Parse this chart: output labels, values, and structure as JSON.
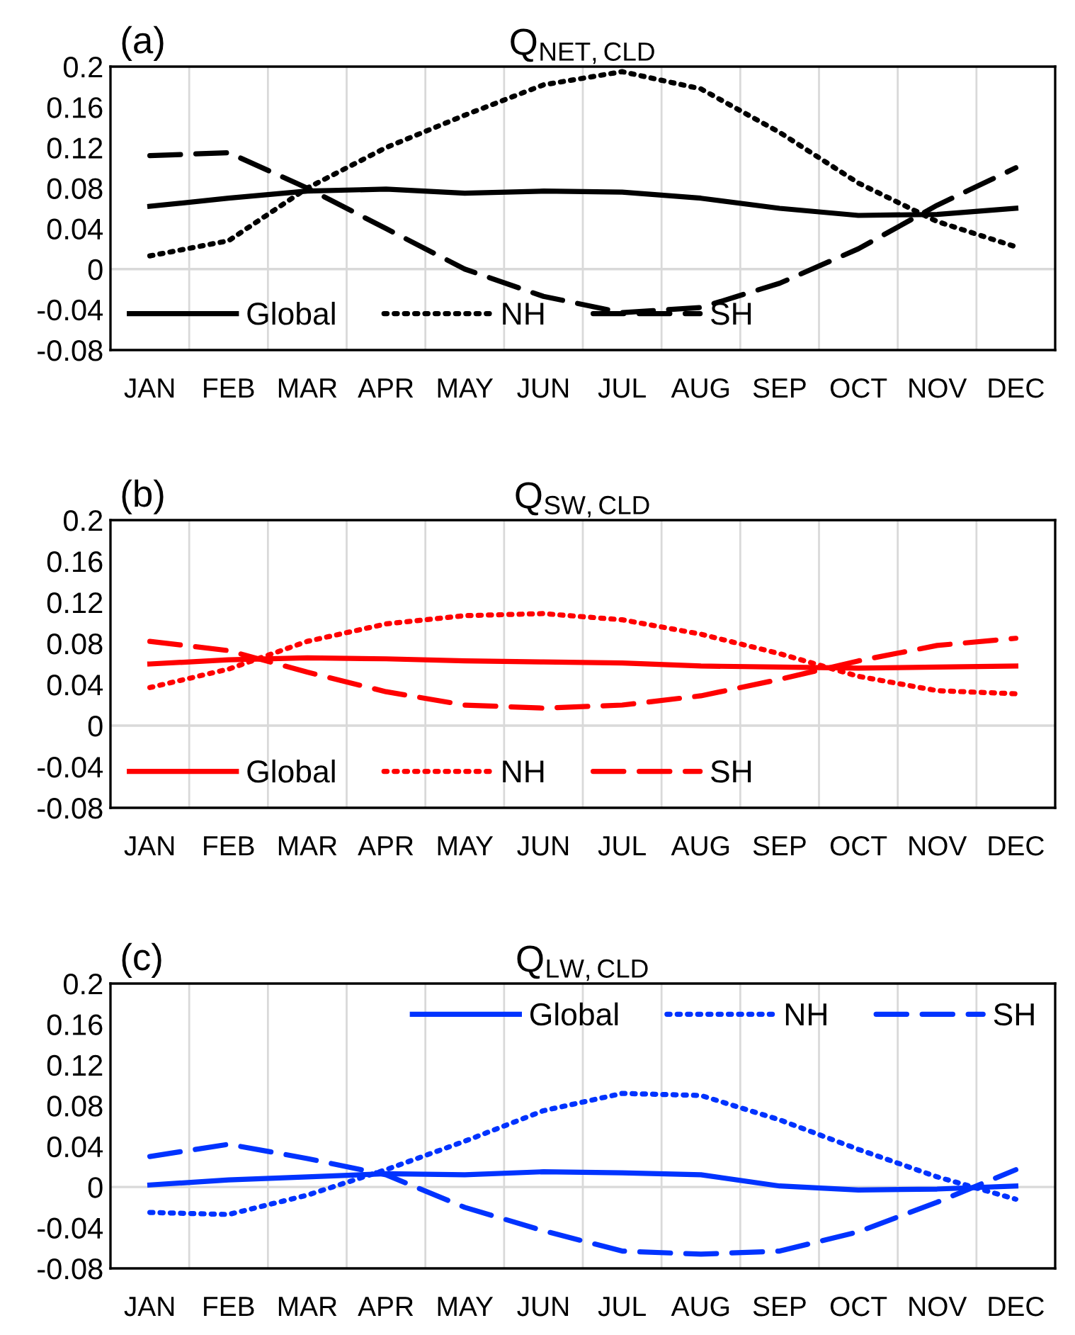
{
  "chart_data": [
    {
      "type": "line",
      "title": "Q$_{NET,CLD}$",
      "annotations": [
        "(a)"
      ],
      "categories": [
        "JAN",
        "FEB",
        "MAR",
        "APR",
        "MAY",
        "JUN",
        "JUL",
        "AUG",
        "SEP",
        "OCT",
        "NOV",
        "DEC"
      ],
      "ylim": [
        -0.08,
        0.2
      ],
      "yticks": [
        -0.08,
        -0.04,
        0,
        0.04,
        0.08,
        0.12,
        0.16,
        0.2
      ],
      "grid": "x",
      "legend": "bottom left",
      "ref_lines": [
        {
          "axis": "y",
          "value": 0,
          "color": "#d9d9d9"
        }
      ],
      "series": [
        {
          "name": "Global",
          "color": "#000000",
          "line_style": "solid",
          "values": [
            0.062,
            0.07,
            0.077,
            0.079,
            0.075,
            0.077,
            0.076,
            0.07,
            0.06,
            0.053,
            0.054,
            0.06
          ]
        },
        {
          "name": "NH",
          "color": "#000000",
          "line_style": "dotted",
          "values": [
            0.013,
            0.028,
            0.08,
            0.12,
            0.152,
            0.182,
            0.195,
            0.178,
            0.135,
            0.085,
            0.047,
            0.022
          ]
        },
        {
          "name": "SH",
          "color": "#000000",
          "line_style": "dashed",
          "values": [
            0.112,
            0.115,
            0.08,
            0.04,
            0.0,
            -0.027,
            -0.043,
            -0.038,
            -0.014,
            0.02,
            0.063,
            0.1
          ]
        }
      ]
    },
    {
      "type": "line",
      "title": "Q$_{SW,CLD}$",
      "annotations": [
        "(b)"
      ],
      "categories": [
        "JAN",
        "FEB",
        "MAR",
        "APR",
        "MAY",
        "JUN",
        "JUL",
        "AUG",
        "SEP",
        "OCT",
        "NOV",
        "DEC"
      ],
      "ylim": [
        -0.08,
        0.2
      ],
      "yticks": [
        -0.08,
        -0.04,
        0,
        0.04,
        0.08,
        0.12,
        0.16,
        0.2
      ],
      "grid": "x",
      "legend": "bottom left",
      "ref_lines": [
        {
          "axis": "y",
          "value": 0,
          "color": "#d9d9d9"
        }
      ],
      "series": [
        {
          "name": "Global",
          "color": "#ff0000",
          "line_style": "solid",
          "values": [
            0.06,
            0.064,
            0.066,
            0.065,
            0.063,
            0.062,
            0.061,
            0.058,
            0.057,
            0.056,
            0.057,
            0.058
          ]
        },
        {
          "name": "NH",
          "color": "#ff0000",
          "line_style": "dotted",
          "values": [
            0.037,
            0.055,
            0.082,
            0.099,
            0.107,
            0.109,
            0.103,
            0.089,
            0.07,
            0.048,
            0.034,
            0.031
          ]
        },
        {
          "name": "SH",
          "color": "#ff0000",
          "line_style": "dashed",
          "values": [
            0.082,
            0.073,
            0.052,
            0.033,
            0.02,
            0.017,
            0.02,
            0.029,
            0.045,
            0.063,
            0.078,
            0.085
          ]
        }
      ]
    },
    {
      "type": "line",
      "title": "Q$_{LW,CLD}$",
      "annotations": [
        "(c)"
      ],
      "categories": [
        "JAN",
        "FEB",
        "MAR",
        "APR",
        "MAY",
        "JUN",
        "JUL",
        "AUG",
        "SEP",
        "OCT",
        "NOV",
        "DEC"
      ],
      "ylim": [
        -0.08,
        0.2
      ],
      "yticks": [
        -0.08,
        -0.04,
        0,
        0.04,
        0.08,
        0.12,
        0.16,
        0.2
      ],
      "grid": "x",
      "legend": "top right",
      "ref_lines": [
        {
          "axis": "y",
          "value": 0,
          "color": "#d9d9d9"
        }
      ],
      "series": [
        {
          "name": "Global",
          "color": "#0033ff",
          "line_style": "solid",
          "values": [
            0.002,
            0.007,
            0.01,
            0.013,
            0.012,
            0.015,
            0.014,
            0.012,
            0.001,
            -0.003,
            -0.002,
            0.001
          ]
        },
        {
          "name": "NH",
          "color": "#0033ff",
          "line_style": "dotted",
          "values": [
            -0.025,
            -0.027,
            -0.008,
            0.017,
            0.045,
            0.075,
            0.092,
            0.09,
            0.066,
            0.037,
            0.01,
            -0.012
          ]
        },
        {
          "name": "SH",
          "color": "#0033ff",
          "line_style": "dashed",
          "values": [
            0.03,
            0.042,
            0.028,
            0.012,
            -0.02,
            -0.043,
            -0.063,
            -0.066,
            -0.063,
            -0.044,
            -0.015,
            0.017
          ]
        }
      ]
    }
  ]
}
